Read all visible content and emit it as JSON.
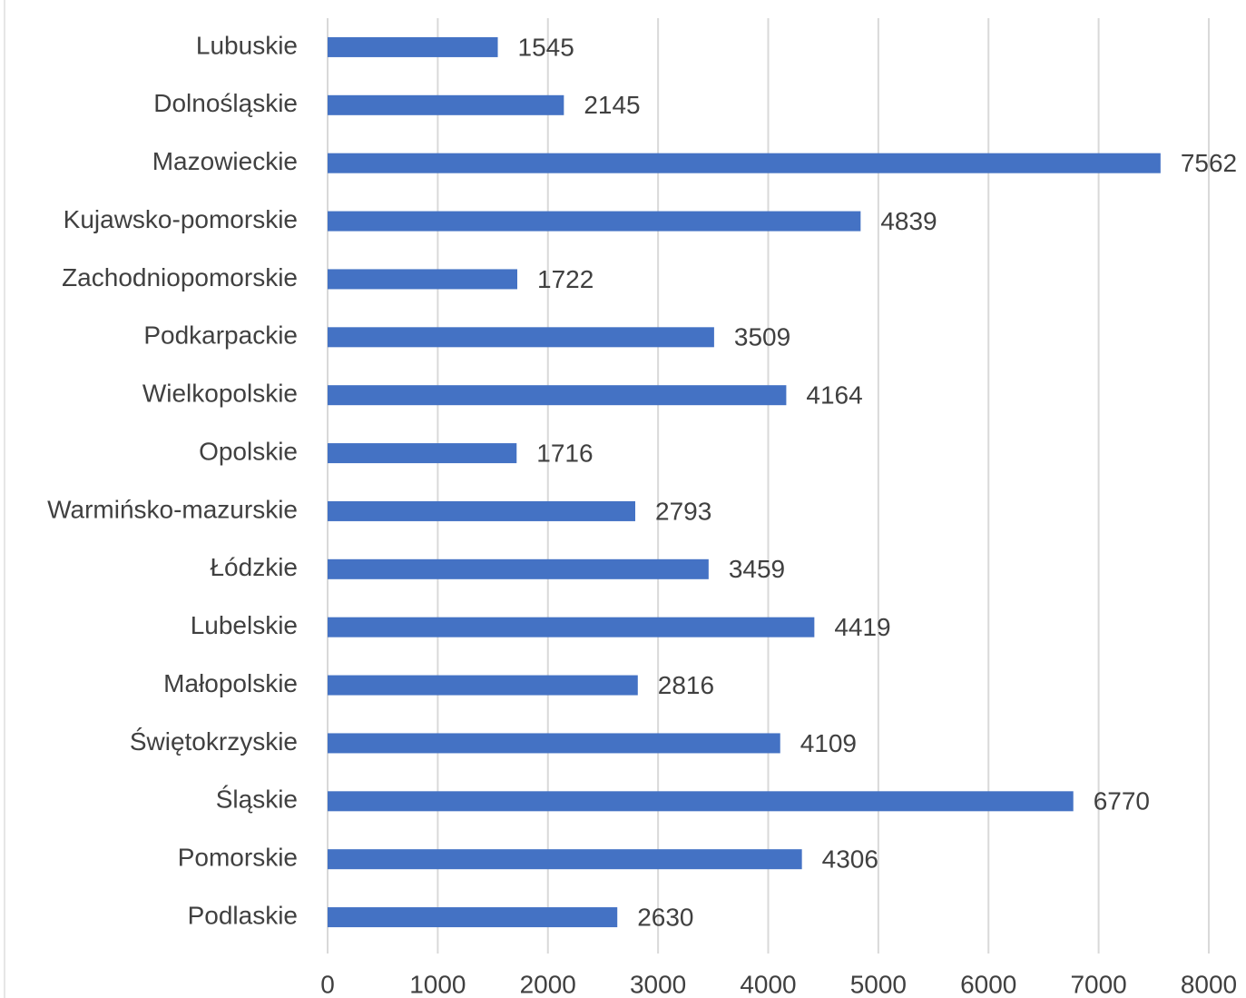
{
  "chart_data": {
    "type": "bar",
    "orientation": "horizontal",
    "categories": [
      "Lubuskie",
      "Dolnośląskie",
      "Mazowieckie",
      "Kujawsko-pomorskie",
      "Zachodniopomorskie",
      "Podkarpackie",
      "Wielkopolskie",
      "Opolskie",
      "Warmińsko-mazurskie",
      "Łódzkie",
      "Lubelskie",
      "Małopolskie",
      "Świętokrzyskie",
      "Śląskie",
      "Pomorskie",
      "Podlaskie"
    ],
    "values": [
      1545,
      2145,
      7562,
      4839,
      1722,
      3509,
      4164,
      1716,
      2793,
      3459,
      4419,
      2816,
      4109,
      6770,
      4306,
      2630
    ],
    "color": "#4472c4",
    "xlim": [
      0,
      8000
    ],
    "xticks": [
      0,
      1000,
      2000,
      3000,
      4000,
      5000,
      6000,
      7000,
      8000
    ],
    "grid": true
  }
}
